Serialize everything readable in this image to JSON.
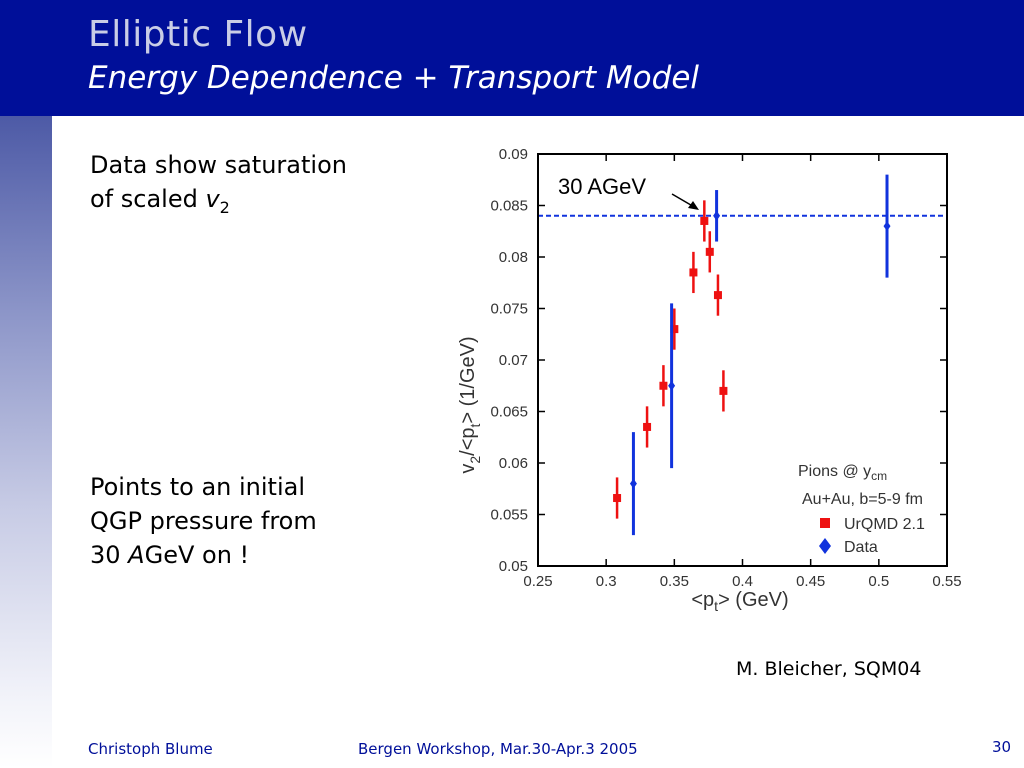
{
  "slide": {
    "title": "Elliptic Flow",
    "subtitle": "Energy Dependence + Transport Model",
    "bullet1": {
      "line1": "Data show saturation",
      "line2_prefix": "of scaled ",
      "var": "v",
      "sub": "2"
    },
    "bullet2": {
      "line1": "Points to an initial",
      "line2": "QGP pressure from",
      "line3_prefix": "30 ",
      "line3_it": "A",
      "line3_suffix": "GeV on !"
    },
    "citation": "M. Bleicher, SQM04",
    "footer": {
      "author": "Christoph Blume",
      "event": "Bergen Workshop, Mar.30-Apr.3 2005",
      "page": "30"
    }
  },
  "chart_data": {
    "type": "scatter",
    "x_ticks": [
      "0.25",
      "0.3",
      "0.35",
      "0.4",
      "0.45",
      "0.5",
      "0.55"
    ],
    "y_ticks": [
      "0.05",
      "0.055",
      "0.06",
      "0.065",
      "0.07",
      "0.075",
      "0.08",
      "0.085",
      "0.09"
    ],
    "xlim": [
      0.25,
      0.55
    ],
    "ylim": [
      0.05,
      0.09
    ],
    "xlabel": {
      "pre": "<p",
      "sub": "t",
      "post": "> (GeV)"
    },
    "ylabel": {
      "v": "v",
      "vsub": "2",
      "mid": "/<p",
      "psub": "t",
      "post": "> (1/GeV)"
    },
    "legend_title": {
      "text": "Pions @ y",
      "sub": "cm"
    },
    "legend_line2": "Au+Au, b=5-9 fm",
    "annotation": "30 AGeV",
    "hline": 0.084,
    "series": [
      {
        "name": "UrQMD 2.1",
        "marker": "square",
        "color": "#ee1111",
        "points": [
          {
            "x": 0.308,
            "y": 0.0566,
            "err": 0.002
          },
          {
            "x": 0.33,
            "y": 0.0635,
            "err": 0.002
          },
          {
            "x": 0.342,
            "y": 0.0675,
            "err": 0.002
          },
          {
            "x": 0.35,
            "y": 0.073,
            "err": 0.002
          },
          {
            "x": 0.364,
            "y": 0.0785,
            "err": 0.002
          },
          {
            "x": 0.372,
            "y": 0.0835,
            "err": 0.002
          },
          {
            "x": 0.376,
            "y": 0.0805,
            "err": 0.002
          },
          {
            "x": 0.382,
            "y": 0.0763,
            "err": 0.002
          },
          {
            "x": 0.386,
            "y": 0.067,
            "err": 0.002
          }
        ]
      },
      {
        "name": "Data",
        "marker": "diamond",
        "color": "#1133dd",
        "points": [
          {
            "x": 0.32,
            "y": 0.058,
            "err": 0.005
          },
          {
            "x": 0.348,
            "y": 0.0675,
            "err": 0.008
          },
          {
            "x": 0.381,
            "y": 0.084,
            "err": 0.0025
          },
          {
            "x": 0.506,
            "y": 0.083,
            "err": 0.005
          }
        ]
      }
    ]
  }
}
